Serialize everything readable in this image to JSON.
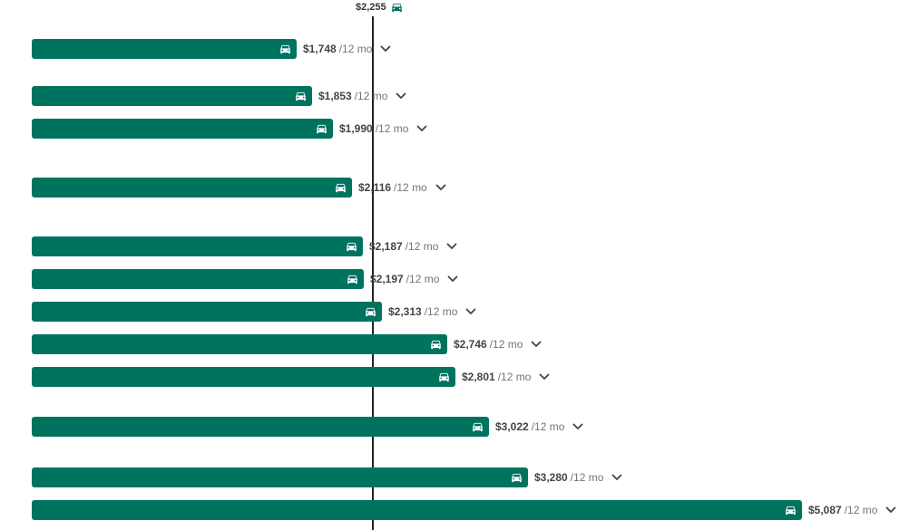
{
  "colors": {
    "bar": "#00735f",
    "reference_line": "#222222",
    "text": "#5f6368"
  },
  "icons": {
    "bar_icon": "car-icon",
    "expand_icon": "chevron-down-icon",
    "reference_icon": "car-icon"
  },
  "chart_data": {
    "type": "bar",
    "orientation": "horizontal",
    "reference": {
      "value": 2255,
      "label": "$2,255"
    },
    "period_label": "/12 mo",
    "xlim": [
      0,
      5300
    ],
    "bars": [
      {
        "value": 1748,
        "label": "$1,748"
      },
      {
        "value": 1853,
        "label": "$1,853"
      },
      {
        "value": 1990,
        "label": "$1,990"
      },
      {
        "value": 2116,
        "label": "$2,116"
      },
      {
        "value": 2187,
        "label": "$2,187"
      },
      {
        "value": 2197,
        "label": "$2,197"
      },
      {
        "value": 2313,
        "label": "$2,313"
      },
      {
        "value": 2746,
        "label": "$2,746"
      },
      {
        "value": 2801,
        "label": "$2,801"
      },
      {
        "value": 3022,
        "label": "$3,022"
      },
      {
        "value": 3280,
        "label": "$3,280"
      },
      {
        "value": 5087,
        "label": "$5,087"
      }
    ]
  }
}
